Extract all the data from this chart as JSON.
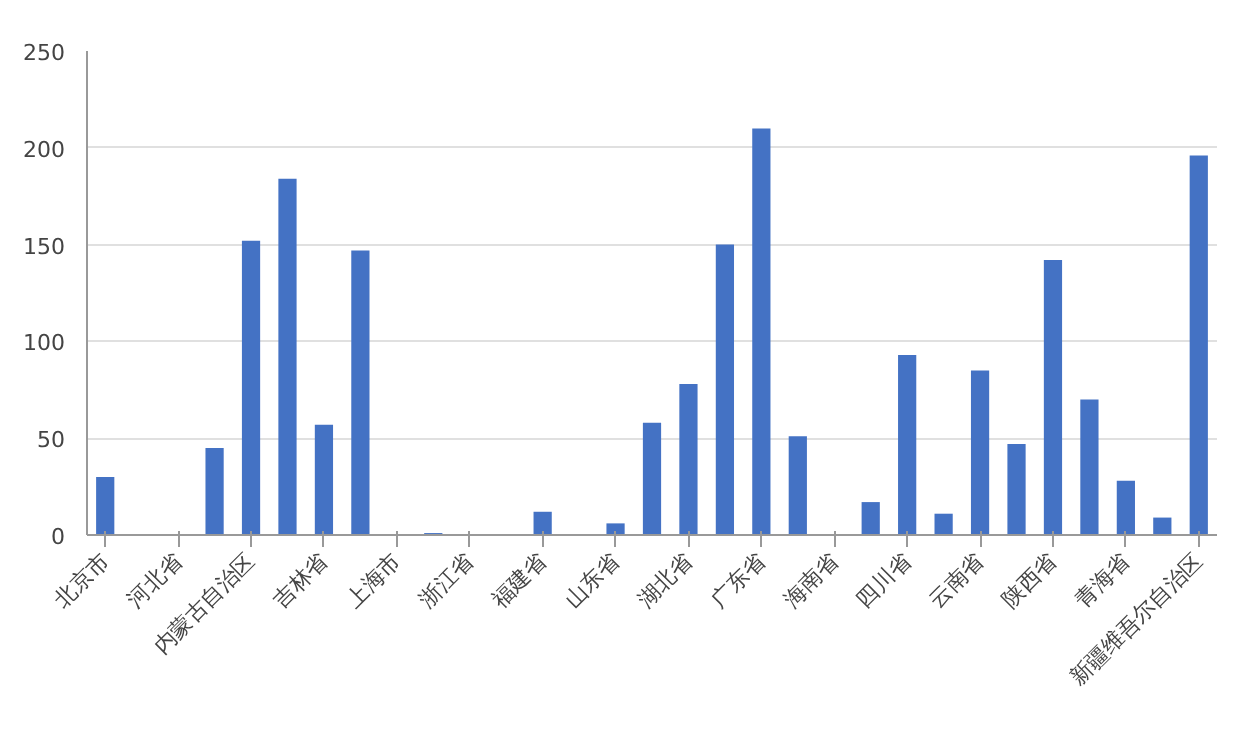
{
  "chart_data": {
    "type": "bar",
    "categories": [
      "北京市",
      null,
      "河北省",
      null,
      "内蒙古自治区",
      null,
      "吉林省",
      null,
      "上海市",
      null,
      "浙江省",
      null,
      "福建省",
      null,
      "山东省",
      null,
      "湖北省",
      null,
      "广东省",
      null,
      "海南省",
      null,
      "四川省",
      null,
      "云南省",
      null,
      "陕西省",
      null,
      "青海省",
      null,
      "新疆维吾尔自治区"
    ],
    "values": [
      30,
      0,
      0,
      45,
      152,
      184,
      57,
      147,
      0,
      1,
      0,
      0,
      12,
      0,
      6,
      58,
      78,
      150,
      210,
      51,
      0,
      17,
      93,
      11,
      85,
      47,
      142,
      70,
      28,
      9,
      196
    ],
    "color": "#4472c4",
    "ylim": [
      0,
      250
    ],
    "yticks": [
      0,
      50,
      100,
      150,
      200,
      250
    ],
    "grid": "y"
  }
}
